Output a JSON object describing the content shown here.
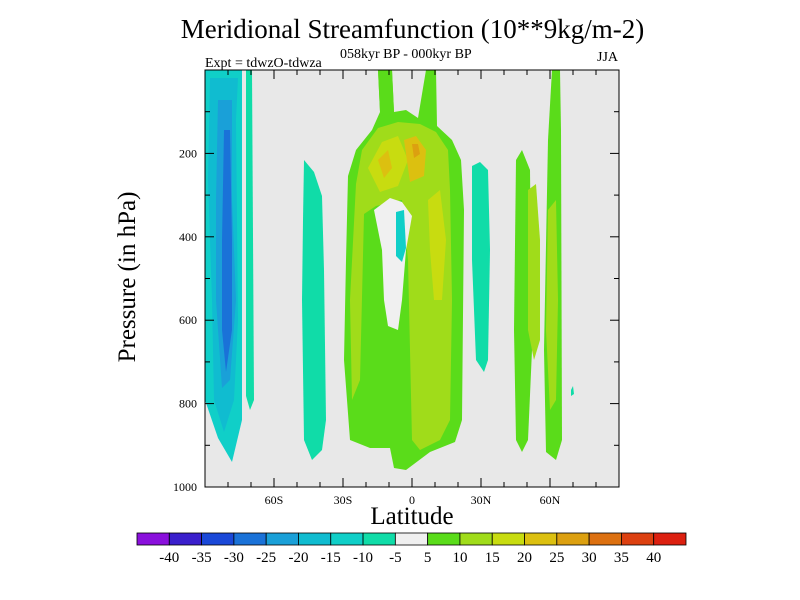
{
  "chart_data": {
    "type": "heatmap",
    "title": "Meridional Streamfunction (10**9kg/m-2)",
    "subtitle": "058kyr BP - 000kyr BP",
    "experiment_label": "Expt = tdwzO-tdwza",
    "season": "JJA",
    "xlabel": "Latitude",
    "ylabel": "Pressure (in hPa)",
    "x_range": [
      -90,
      90
    ],
    "y_range": [
      1000,
      0
    ],
    "x_ticks": [
      "60S",
      "30S",
      "0",
      "30N",
      "60N"
    ],
    "x_tick_values": [
      -60,
      -30,
      0,
      30,
      60
    ],
    "y_ticks": [
      "200",
      "400",
      "600",
      "800",
      "1000"
    ],
    "y_tick_values": [
      200,
      400,
      600,
      800,
      1000
    ],
    "colorbar": {
      "labels": [
        "-40",
        "-35",
        "-30",
        "-25",
        "-20",
        "-15",
        "-10",
        "-5",
        "5",
        "10",
        "15",
        "20",
        "25",
        "30",
        "35",
        "40"
      ],
      "colors": [
        "#8a10dc",
        "#3a1fcc",
        "#1a48d8",
        "#1a72d8",
        "#1aa0d8",
        "#10bcd0",
        "#10cfc8",
        "#10dca8",
        "#f0f0f0",
        "#5adc1a",
        "#a0dc1a",
        "#c8dc10",
        "#dcc010",
        "#dca010",
        "#dc7010",
        "#dc4010",
        "#dc2010"
      ]
    },
    "regions": [
      {
        "label": "southern polar negative cell",
        "min": -30,
        "max": -20,
        "color": "#1a72d8",
        "lat": [
          -90,
          -70
        ],
        "p": [
          20,
          950
        ]
      },
      {
        "label": "southern subtropical negative band",
        "min": -15,
        "max": -10,
        "color": "#10dca8",
        "lat": [
          -48,
          -38
        ],
        "p": [
          220,
          930
        ]
      },
      {
        "label": "tropical positive cell (south)",
        "min": 15,
        "max": 25,
        "color": "#a0dc1a",
        "lat": [
          -24,
          -3
        ],
        "p": [
          20,
          950
        ]
      },
      {
        "label": "tropical positive cell (north)",
        "min": 15,
        "max": 25,
        "color": "#a0dc1a",
        "lat": [
          -3,
          22
        ],
        "p": [
          20,
          950
        ]
      },
      {
        "label": "northern subtropical negative band",
        "min": -15,
        "max": -10,
        "color": "#10dca8",
        "lat": [
          25,
          33
        ],
        "p": [
          220,
          820
        ]
      },
      {
        "label": "northern midlatitude positive band",
        "min": 10,
        "max": 20,
        "color": "#5adc1a",
        "lat": [
          44,
          65
        ],
        "p": [
          20,
          960
        ]
      }
    ]
  }
}
